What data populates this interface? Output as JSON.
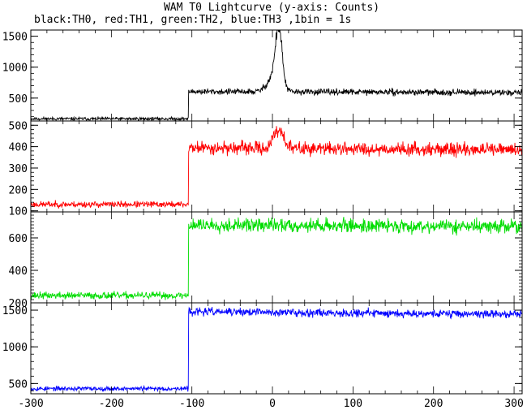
{
  "chart_data": {
    "type": "line",
    "title": "WAM T0 Lightcurve (y-axis: Counts)",
    "subtitle": "black:TH0, red:TH1, green:TH2, blue:TH3 ,1bin = 1s",
    "xlim": [
      -300,
      310
    ],
    "x_ticks": [
      -300,
      -200,
      -100,
      0,
      100,
      200,
      300
    ],
    "x_tick_labels": [
      "-300",
      "-200",
      "-100",
      "0",
      "100",
      "200",
      "300"
    ],
    "panels": [
      {
        "name": "TH0",
        "color": "#000000",
        "ylim": [
          130,
          1600
        ],
        "y_ticks": [
          500,
          1000,
          1500
        ],
        "y_tick_labels": [
          "500",
          "1000",
          "1500"
        ],
        "pre_level": 165,
        "pre_noise": 22,
        "step_x": -104,
        "post_level": 605,
        "post_noise": 40,
        "post_trend": -15,
        "peaks": [
          {
            "center": 8,
            "width": 4,
            "height": 880
          },
          {
            "center": 2,
            "width": 8,
            "height": 250
          }
        ],
        "seed": 11
      },
      {
        "name": "TH1",
        "color": "#ff0000",
        "ylim": [
          95,
          520
        ],
        "y_ticks": [
          100,
          200,
          300,
          400,
          500
        ],
        "y_tick_labels": [
          "100",
          "200",
          "300",
          "400",
          "500"
        ],
        "pre_level": 130,
        "pre_noise": 12,
        "step_x": -104,
        "post_level": 395,
        "post_noise": 25,
        "post_trend": -10,
        "peaks": [
          {
            "center": 8,
            "width": 6,
            "height": 90
          }
        ],
        "seed": 23
      },
      {
        "name": "TH2",
        "color": "#00dd00",
        "ylim": [
          200,
          760
        ],
        "y_ticks": [
          200,
          400,
          600
        ],
        "y_tick_labels": [
          "200",
          "400",
          "600"
        ],
        "pre_level": 245,
        "pre_noise": 18,
        "step_x": -104,
        "post_level": 680,
        "post_noise": 35,
        "post_trend": -10,
        "peaks": [],
        "seed": 37
      },
      {
        "name": "TH3",
        "color": "#0000ff",
        "ylim": [
          360,
          1600
        ],
        "y_ticks": [
          500,
          1000,
          1500
        ],
        "y_tick_labels": [
          "500",
          "1000",
          "1500"
        ],
        "pre_level": 430,
        "pre_noise": 25,
        "step_x": -104,
        "post_level": 1480,
        "post_noise": 45,
        "post_trend": -35,
        "peaks": [],
        "seed": 53
      }
    ]
  }
}
